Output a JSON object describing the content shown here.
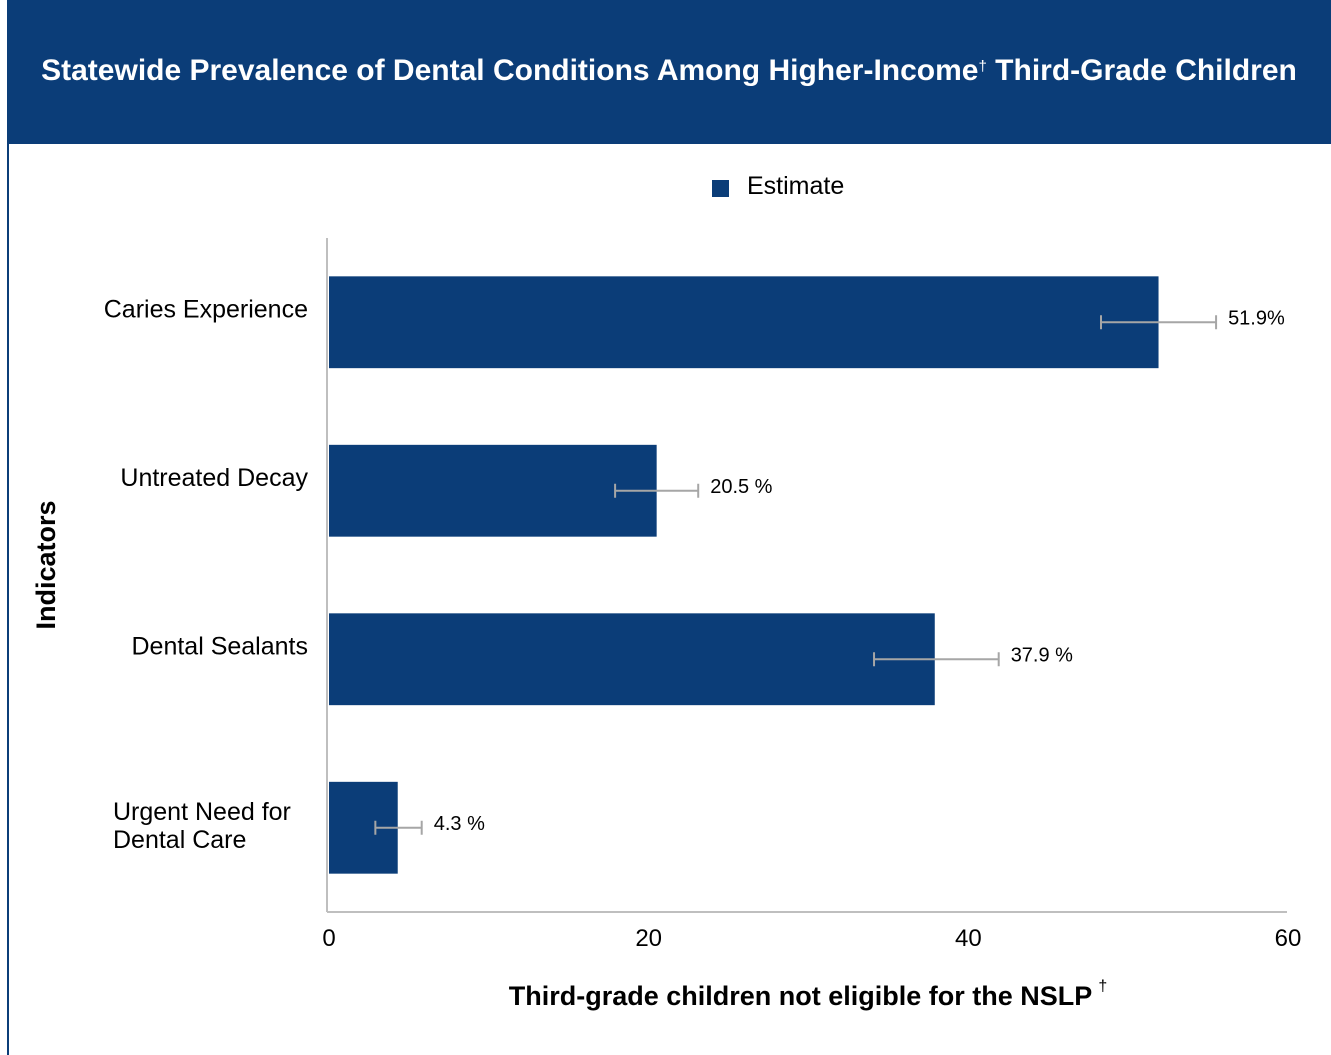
{
  "header": {
    "title_part1": "Statewide Prevalence of Dental Conditions Among Higher-Income",
    "title_dagger": "†",
    "title_part2": " Third-Grade Children"
  },
  "colors": {
    "header_bg": "#0b3d78",
    "bar": "#0b3d78",
    "error_bar": "#a6a6a6",
    "axis": "#bfbfbf"
  },
  "chart_data": {
    "type": "bar",
    "orientation": "horizontal",
    "categories": [
      "Caries Experience",
      "Untreated Decay",
      "Dental Sealants",
      "Urgent Need for Dental Care"
    ],
    "series": [
      {
        "name": "Estimate",
        "values": [
          51.9,
          20.5,
          37.9,
          4.3
        ],
        "labels": [
          "51.9%",
          "20.5 %",
          "37.9 %",
          "4.3 %"
        ],
        "error_low": [
          48.3,
          17.9,
          34.1,
          2.9
        ],
        "error_high": [
          55.5,
          23.1,
          41.9,
          5.8
        ]
      }
    ],
    "xlabel": "Third-grade children not eligible for the NSLP",
    "xlabel_dagger": "†",
    "ylabel": "Indicators",
    "xlim": [
      0,
      60
    ],
    "xticks": [
      "0",
      "20",
      "40",
      "60"
    ],
    "legend_position": "top-center",
    "grid": false
  }
}
